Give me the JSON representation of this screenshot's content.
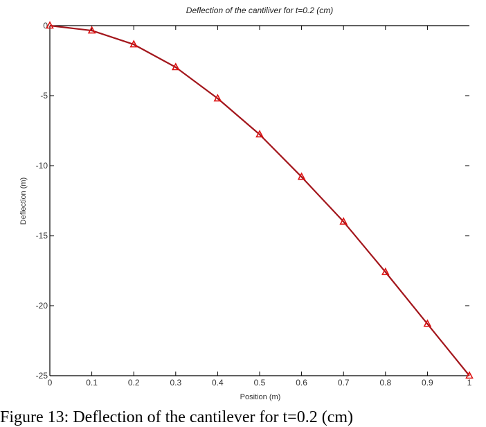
{
  "chart_data": {
    "type": "line",
    "title": "Deflection of the cantiliver for t=0.2 (cm)",
    "xlabel": "Position (m)",
    "ylabel": "Deflection (m)",
    "xlim": [
      0,
      1
    ],
    "ylim": [
      -25,
      0
    ],
    "xticks": [
      "0",
      "0.1",
      "0.2",
      "0.3",
      "0.4",
      "0.5",
      "0.6",
      "0.7",
      "0.8",
      "0.9",
      "1"
    ],
    "yticks": [
      "0",
      "-5",
      "-10",
      "-15",
      "-20",
      "-25"
    ],
    "grid": false,
    "legend": null,
    "series": [
      {
        "name": "deflection",
        "color": "#a3161c",
        "marker": "triangle",
        "marker_color": "#dd1111",
        "x": [
          0,
          0.1,
          0.2,
          0.3,
          0.4,
          0.5,
          0.6,
          0.7,
          0.8,
          0.9,
          1.0
        ],
        "y": [
          0,
          -0.35,
          -1.34,
          -2.97,
          -5.2,
          -7.77,
          -10.8,
          -14.0,
          -17.6,
          -21.3,
          -25.0
        ]
      }
    ]
  },
  "caption": "Figure 13: Deflection of the cantilever for t=0.2 (cm)"
}
